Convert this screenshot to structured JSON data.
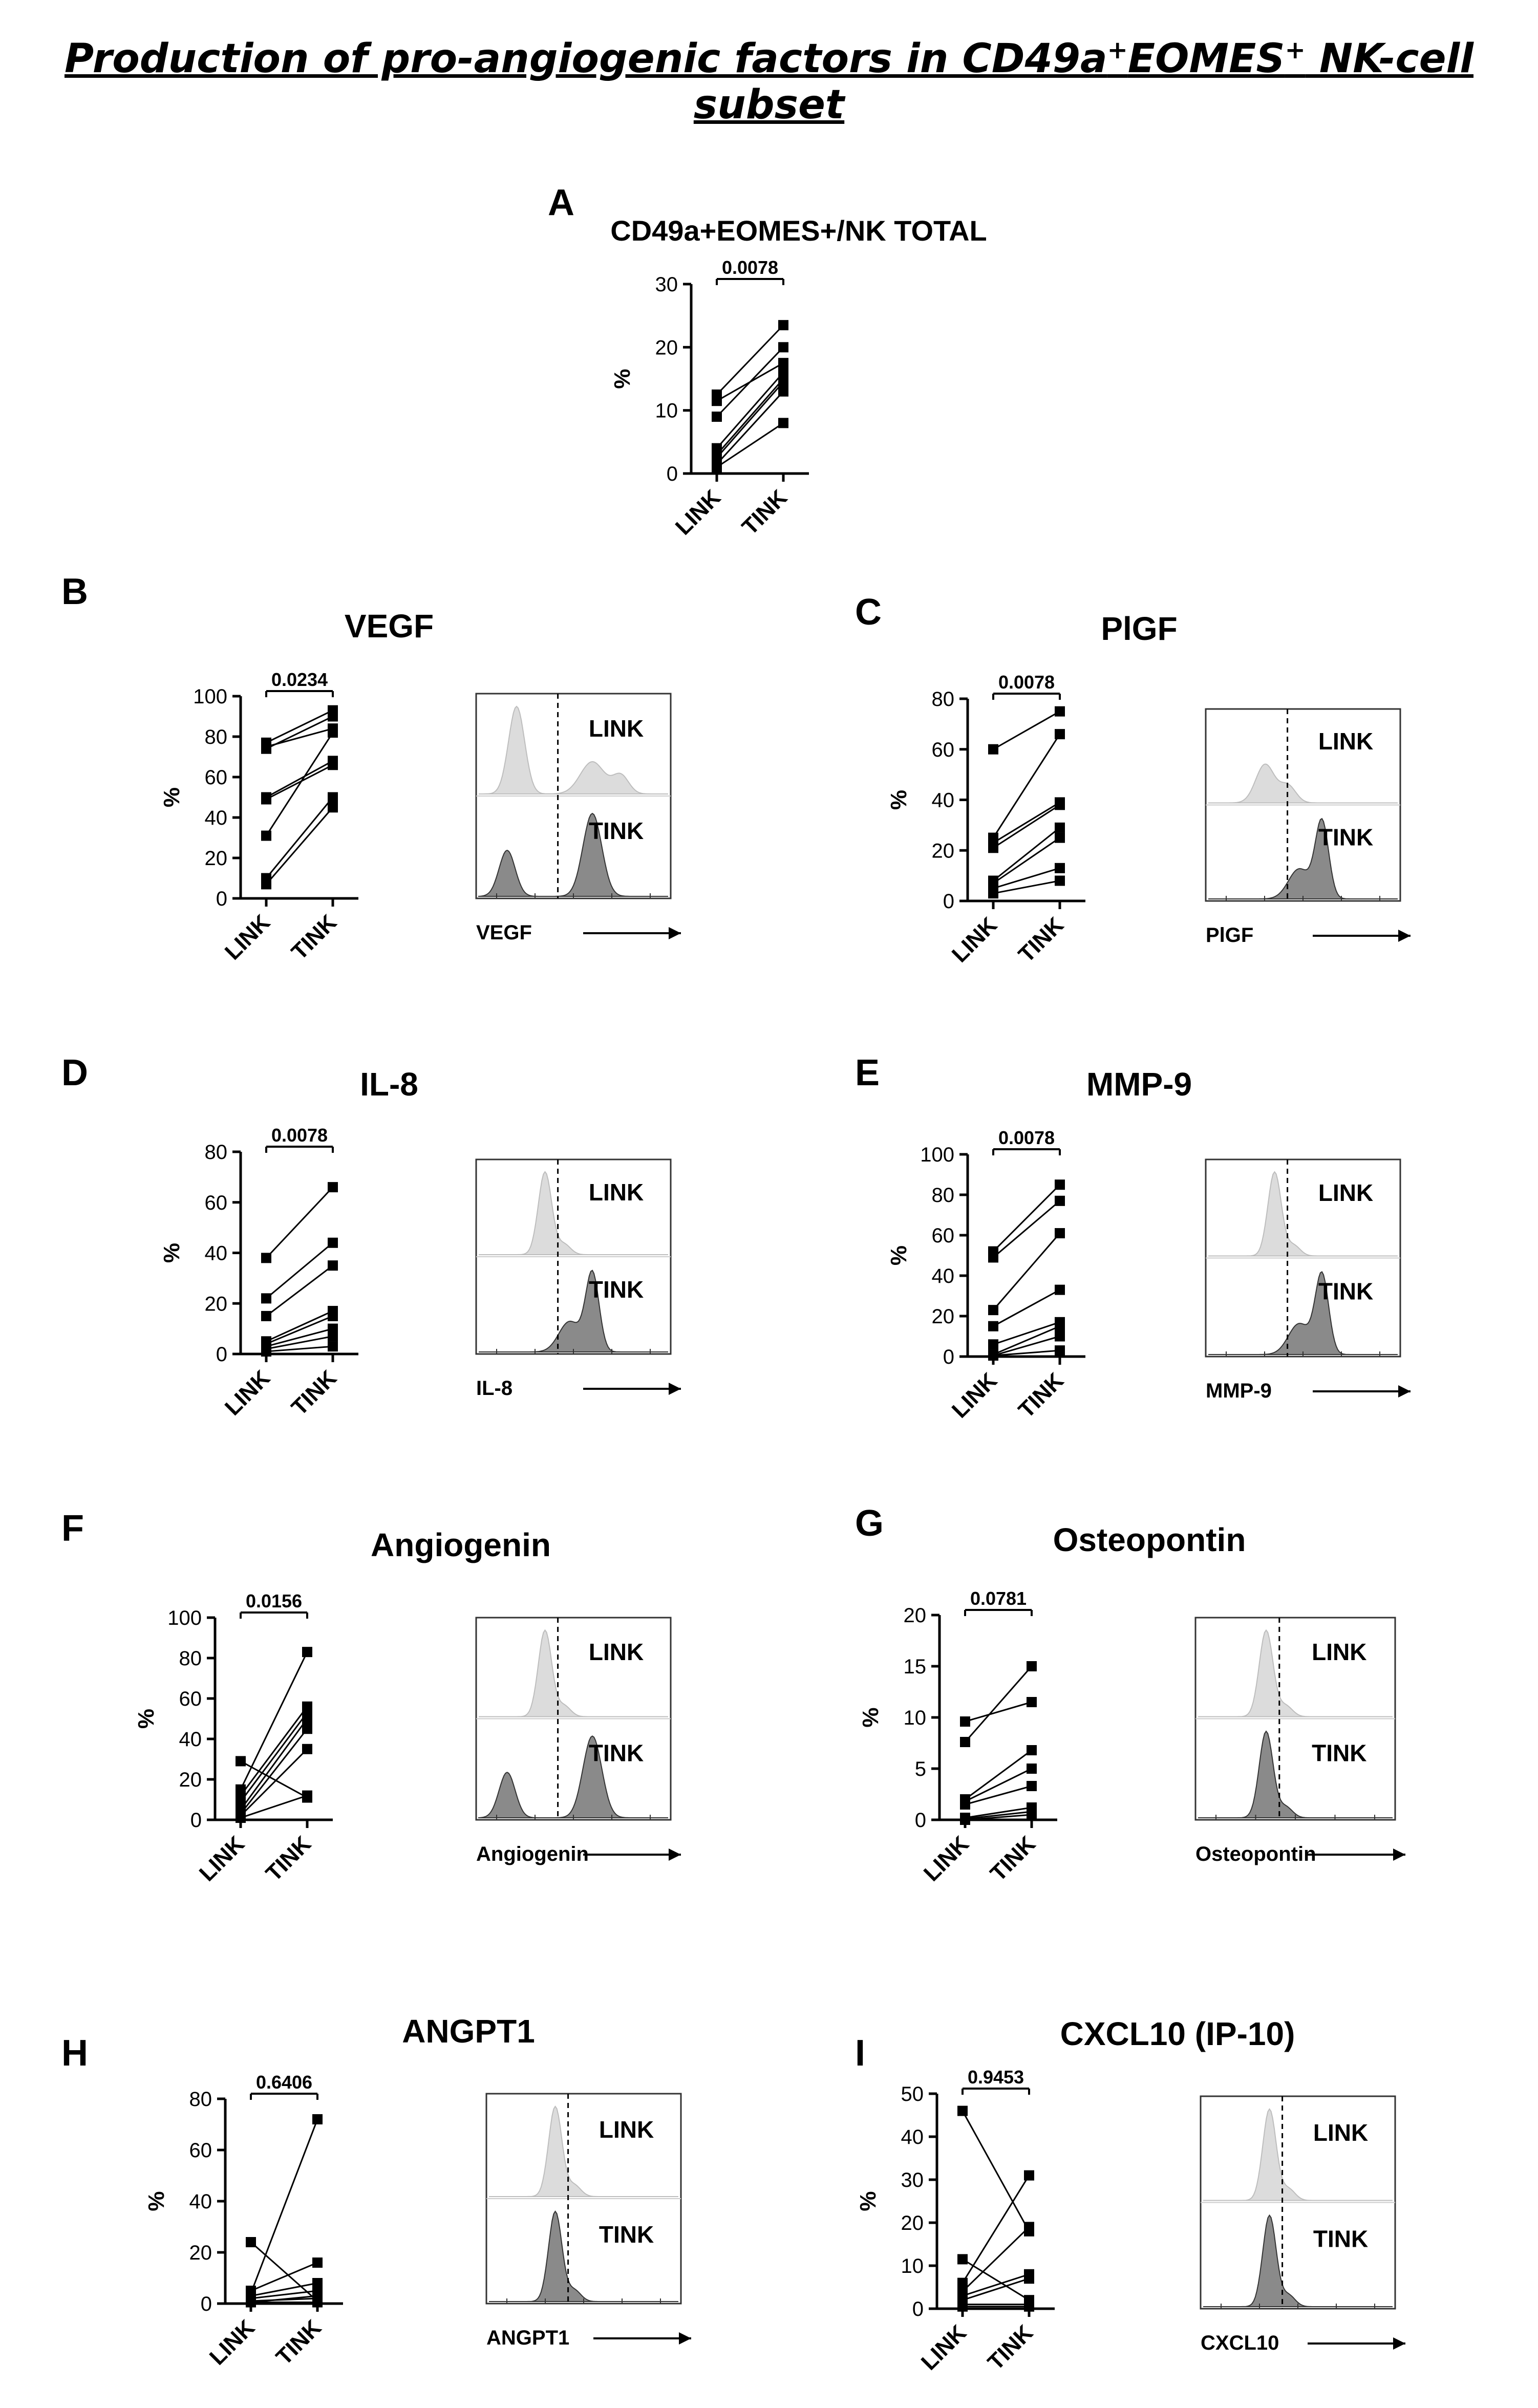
{
  "figure": {
    "title_parts": [
      "Production of pro-angiogenic factors in CD49a",
      "+",
      "EOMES",
      "+",
      " NK-cell subset"
    ],
    "hist_labels": {
      "top": "LINK",
      "bottom": "TINK"
    }
  },
  "chart_data": [
    {
      "panel": "A",
      "type": "scatter",
      "style": "paired",
      "title": "CD49a+EOMES+/NK TOTAL",
      "ylabel": "%",
      "categories": [
        "LINK",
        "TINK"
      ],
      "ylim": [
        0,
        30
      ],
      "yticks": [
        0,
        10,
        20,
        30
      ],
      "pvalue": "0.0078",
      "pairs": [
        [
          12.5,
          23.5
        ],
        [
          11.5,
          17.5
        ],
        [
          9,
          20
        ],
        [
          4,
          16
        ],
        [
          3,
          15
        ],
        [
          2.5,
          14.5
        ],
        [
          1.5,
          13
        ],
        [
          1,
          8
        ]
      ],
      "histogram": null
    },
    {
      "panel": "B",
      "type": "scatter",
      "style": "paired",
      "title": "VEGF",
      "ylabel": "%",
      "categories": [
        "LINK",
        "TINK"
      ],
      "ylim": [
        0,
        100
      ],
      "yticks": [
        0,
        20,
        40,
        60,
        80,
        100
      ],
      "pvalue": "0.0234",
      "pairs": [
        [
          77,
          93
        ],
        [
          75,
          84
        ],
        [
          74,
          90
        ],
        [
          50,
          68
        ],
        [
          49,
          66
        ],
        [
          31,
          82
        ],
        [
          10,
          50
        ],
        [
          7,
          45
        ]
      ],
      "histogram": {
        "marker": "VEGF",
        "link": "bimodal",
        "tink": "bimodal"
      }
    },
    {
      "panel": "C",
      "type": "scatter",
      "style": "paired",
      "title": "PlGF",
      "ylabel": "%",
      "categories": [
        "LINK",
        "TINK"
      ],
      "ylim": [
        0,
        80
      ],
      "yticks": [
        0,
        20,
        40,
        60,
        80
      ],
      "pvalue": "0.0078",
      "pairs": [
        [
          60,
          75
        ],
        [
          25,
          66
        ],
        [
          23,
          39
        ],
        [
          21,
          38
        ],
        [
          8,
          29
        ],
        [
          7,
          25
        ],
        [
          5,
          13
        ],
        [
          3,
          8
        ]
      ],
      "histogram": {
        "marker": "PlGF",
        "link": "small",
        "tink": "shifted"
      }
    },
    {
      "panel": "D",
      "type": "scatter",
      "style": "paired",
      "title": "IL-8",
      "ylabel": "%",
      "categories": [
        "LINK",
        "TINK"
      ],
      "ylim": [
        0,
        80
      ],
      "yticks": [
        0,
        20,
        40,
        60,
        80
      ],
      "pvalue": "0.0078",
      "pairs": [
        [
          38,
          66
        ],
        [
          22,
          44
        ],
        [
          15,
          35
        ],
        [
          5,
          17
        ],
        [
          4,
          15
        ],
        [
          3,
          10
        ],
        [
          2,
          7
        ],
        [
          1,
          3
        ]
      ],
      "histogram": {
        "marker": "IL-8",
        "link": "single",
        "tink": "shifted"
      }
    },
    {
      "panel": "E",
      "type": "scatter",
      "style": "paired",
      "title": "MMP-9",
      "ylabel": "%",
      "categories": [
        "LINK",
        "TINK"
      ],
      "ylim": [
        0,
        100
      ],
      "yticks": [
        0,
        20,
        40,
        60,
        80,
        100
      ],
      "pvalue": "0.0078",
      "pairs": [
        [
          52,
          85
        ],
        [
          49,
          77
        ],
        [
          23,
          61
        ],
        [
          15,
          33
        ],
        [
          6,
          17
        ],
        [
          1,
          15
        ],
        [
          0.5,
          10
        ],
        [
          0.5,
          3
        ]
      ],
      "histogram": {
        "marker": "MMP-9",
        "link": "single",
        "tink": "shifted"
      }
    },
    {
      "panel": "F",
      "type": "scatter",
      "style": "paired",
      "title": "Angiogenin",
      "ylabel": "%",
      "categories": [
        "LINK",
        "TINK"
      ],
      "ylim": [
        0,
        100
      ],
      "yticks": [
        0,
        20,
        40,
        60,
        80,
        100
      ],
      "pvalue": "0.0156",
      "pairs": [
        [
          29,
          11
        ],
        [
          15,
          83
        ],
        [
          12,
          56
        ],
        [
          9,
          53
        ],
        [
          5,
          50
        ],
        [
          3,
          45
        ],
        [
          2,
          35
        ],
        [
          1,
          12
        ]
      ],
      "histogram": {
        "marker": "Angiogenin",
        "link": "single",
        "tink": "bimodal"
      }
    },
    {
      "panel": "G",
      "type": "scatter",
      "style": "paired",
      "title": "Osteopontin",
      "ylabel": "%",
      "categories": [
        "LINK",
        "TINK"
      ],
      "ylim": [
        0,
        20
      ],
      "yticks": [
        0,
        5,
        10,
        15,
        20
      ],
      "pvalue": "0.0781",
      "pairs": [
        [
          9.6,
          11.5
        ],
        [
          7.6,
          15
        ],
        [
          2,
          6.8
        ],
        [
          1.8,
          5
        ],
        [
          1.5,
          3.3
        ],
        [
          0.2,
          1.2
        ],
        [
          0.1,
          0.8
        ],
        [
          0,
          0.5
        ]
      ],
      "histogram": {
        "marker": "Osteopontin",
        "link": "single",
        "tink": "single"
      }
    },
    {
      "panel": "H",
      "type": "scatter",
      "style": "paired",
      "title": "ANGPT1",
      "ylabel": "%",
      "categories": [
        "LINK",
        "TINK"
      ],
      "ylim": [
        0,
        80
      ],
      "yticks": [
        0,
        20,
        40,
        60,
        80
      ],
      "pvalue": "0.6406",
      "pairs": [
        [
          24,
          1
        ],
        [
          5,
          16
        ],
        [
          4,
          72
        ],
        [
          3,
          8
        ],
        [
          2,
          5
        ],
        [
          1,
          2
        ],
        [
          0.5,
          0.5
        ],
        [
          0.5,
          3
        ]
      ],
      "histogram": {
        "marker": "ANGPT1",
        "link": "single",
        "tink": "single"
      }
    },
    {
      "panel": "I",
      "type": "scatter",
      "style": "paired",
      "title": "CXCL10 (IP-10)",
      "ylabel": "%",
      "categories": [
        "LINK",
        "TINK"
      ],
      "ylim": [
        0,
        50
      ],
      "yticks": [
        0,
        10,
        20,
        30,
        40,
        50
      ],
      "pvalue": "0.9453",
      "pairs": [
        [
          46,
          18
        ],
        [
          11.5,
          2
        ],
        [
          6,
          31
        ],
        [
          4,
          19
        ],
        [
          3,
          8
        ],
        [
          2,
          7
        ],
        [
          1,
          1
        ],
        [
          0.5,
          0.5
        ]
      ],
      "histogram": {
        "marker": "CXCL10",
        "link": "single",
        "tink": "single"
      }
    }
  ]
}
